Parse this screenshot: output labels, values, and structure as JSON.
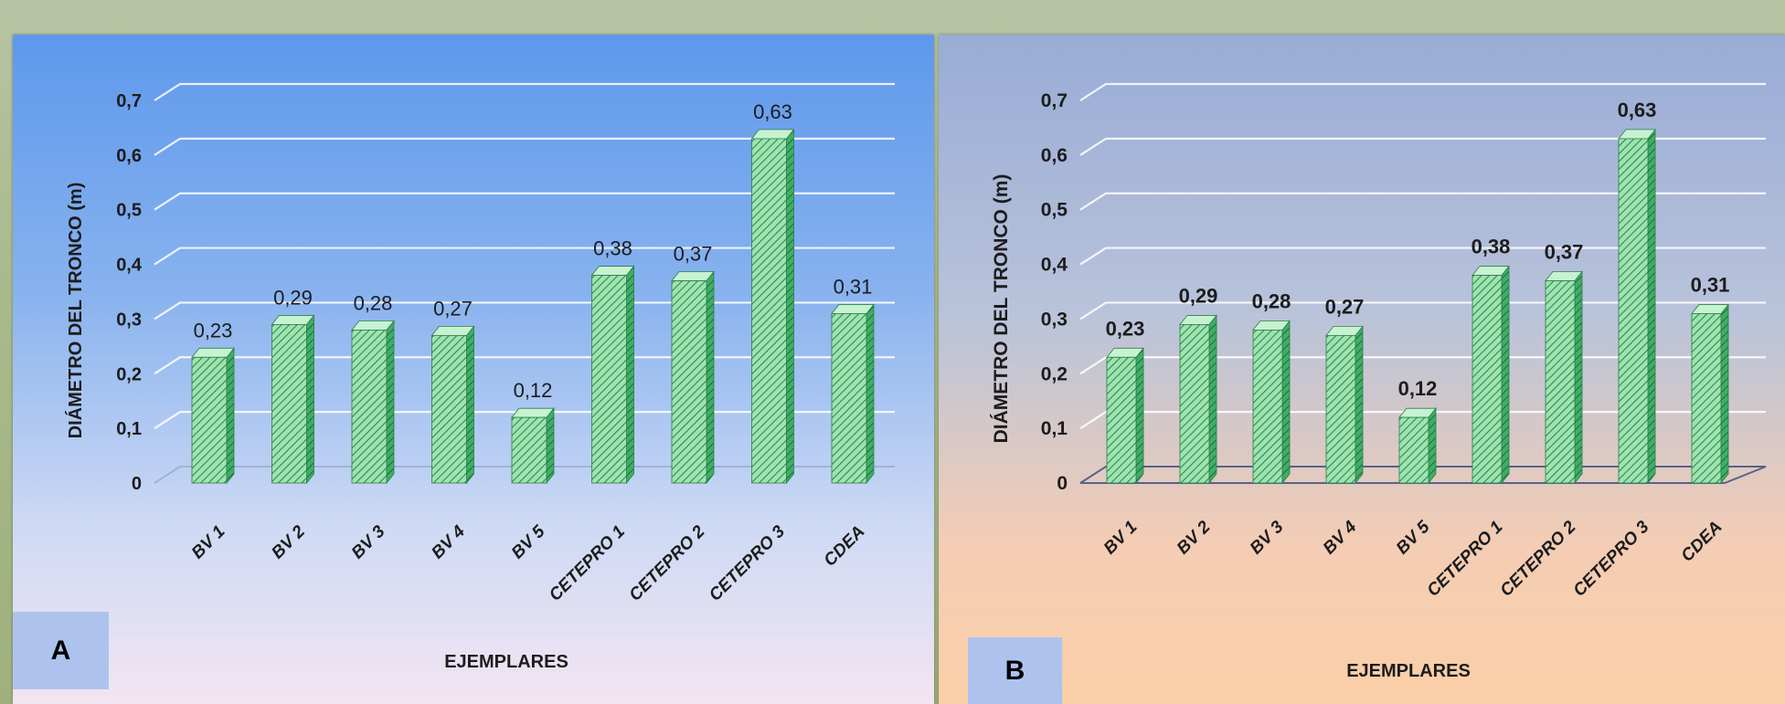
{
  "colors": {
    "bar_face": "#9fe3b0",
    "bar_side": "#3fae66",
    "bar_top": "#c7f2d2",
    "hatch": "#2d8a50",
    "gridline": "#ffffff"
  },
  "chart_data": [
    {
      "panel_label": "A",
      "type": "bar",
      "style": "3d-hatched",
      "title": "",
      "xlabel": "EJEMPLARES",
      "ylabel": "DIÁMETRO  DEL  TRONCO (m)",
      "ylim": [
        0,
        0.7
      ],
      "yticks": [
        0,
        0.1,
        0.2,
        0.3,
        0.4,
        0.5,
        0.6,
        0.7
      ],
      "ytick_labels": [
        "0",
        "0,1",
        "0,2",
        "0,3",
        "0,4",
        "0,5",
        "0,6",
        "0,7"
      ],
      "categories": [
        "BV 1",
        "BV 2",
        "BV 3",
        "BV 4",
        "BV 5",
        "CETEPRO 1",
        "CETEPRO 2",
        "CETEPRO 3",
        "CDEA"
      ],
      "values": [
        0.23,
        0.29,
        0.28,
        0.27,
        0.12,
        0.38,
        0.37,
        0.63,
        0.31
      ],
      "value_labels": [
        "0,23",
        "0,29",
        "0,28",
        "0,27",
        "0,12",
        "0,38",
        "0,37",
        "0,63",
        "0,31"
      ],
      "grid": true
    },
    {
      "panel_label": "B",
      "type": "bar",
      "style": "3d-hatched",
      "title": "",
      "xlabel": "EJEMPLARES",
      "ylabel": "DIÁMETRO DEL TRONCO (m)",
      "ylim": [
        0,
        0.7
      ],
      "yticks": [
        0,
        0.1,
        0.2,
        0.3,
        0.4,
        0.5,
        0.6,
        0.7
      ],
      "ytick_labels": [
        "0",
        "0,1",
        "0,2",
        "0,3",
        "0,4",
        "0,5",
        "0,6",
        "0,7"
      ],
      "categories": [
        "BV 1",
        "BV 2",
        "BV 3",
        "BV 4",
        "BV 5",
        "CETEPRO 1",
        "CETEPRO 2",
        "CETEPRO 3",
        "CDEA"
      ],
      "values": [
        0.23,
        0.29,
        0.28,
        0.27,
        0.12,
        0.38,
        0.37,
        0.63,
        0.31
      ],
      "value_labels": [
        "0,23",
        "0,29",
        "0,28",
        "0,27",
        "0,12",
        "0,38",
        "0,37",
        "0,63",
        "0,31"
      ],
      "grid": true
    }
  ]
}
